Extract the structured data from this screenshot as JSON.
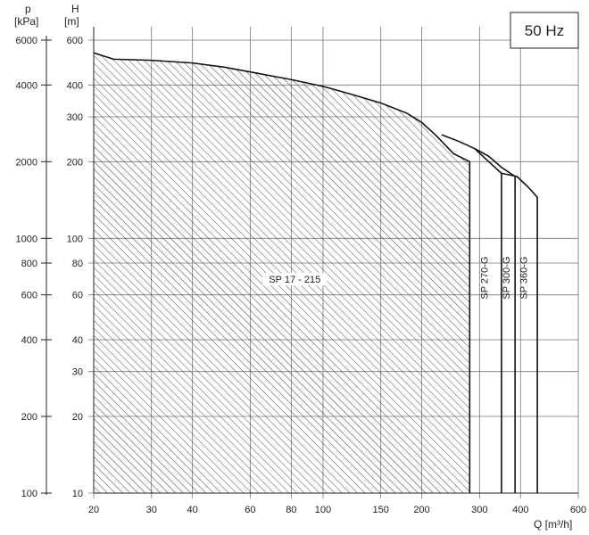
{
  "chart_data": {
    "type": "area",
    "frequency_badge": "50 Hz",
    "x_axis": {
      "label": "Q [m³/h]",
      "scale": "log",
      "range": [
        20,
        600
      ],
      "ticks": [
        20,
        30,
        40,
        60,
        80,
        100,
        150,
        200,
        300,
        400,
        600
      ],
      "tick_labels": [
        "20",
        "30",
        "40",
        "60",
        "80",
        "100",
        "150",
        "200",
        "300",
        "400",
        "600"
      ]
    },
    "y_axis_head": {
      "label_top": "H",
      "label_unit": "[m]",
      "scale": "log",
      "range": [
        10,
        600
      ],
      "ticks": [
        10,
        20,
        30,
        40,
        60,
        80,
        100,
        200,
        300,
        400,
        600
      ],
      "tick_labels": [
        "10",
        "20",
        "30",
        "40",
        "60",
        "80",
        "100",
        "200",
        "300",
        "400",
        "600"
      ]
    },
    "y_axis_pressure": {
      "label_top": "p",
      "label_unit": "[kPa]",
      "scale": "log",
      "ticks": [
        100,
        200,
        400,
        600,
        800,
        1000,
        2000,
        4000,
        6000
      ],
      "tick_labels": [
        "100",
        "200",
        "400",
        "600",
        "800",
        "1000",
        "2000",
        "4000",
        "6000"
      ]
    },
    "grid": true,
    "series": [
      {
        "name": "SP 17 - 215",
        "fill": "hatched",
        "envelope": [
          [
            20,
            535
          ],
          [
            23,
            505
          ],
          [
            30,
            500
          ],
          [
            40,
            488
          ],
          [
            50,
            470
          ],
          [
            60,
            450
          ],
          [
            80,
            420
          ],
          [
            100,
            395
          ],
          [
            120,
            370
          ],
          [
            150,
            340
          ],
          [
            180,
            310
          ],
          [
            200,
            285
          ],
          [
            220,
            255
          ],
          [
            250,
            215
          ],
          [
            280,
            200
          ]
        ],
        "q_max": 280
      },
      {
        "name": "SP 270-G",
        "envelope": [
          [
            230,
            255
          ],
          [
            260,
            240
          ],
          [
            290,
            225
          ],
          [
            320,
            200
          ],
          [
            350,
            180
          ]
        ],
        "q_max": 350
      },
      {
        "name": "SP 300-G",
        "envelope": [
          [
            290,
            225
          ],
          [
            320,
            210
          ],
          [
            350,
            190
          ],
          [
            385,
            175
          ]
        ],
        "q_max": 385
      },
      {
        "name": "SP 360-G",
        "envelope": [
          [
            350,
            180
          ],
          [
            390,
            175
          ],
          [
            420,
            160
          ],
          [
            450,
            145
          ]
        ],
        "q_max": 450
      }
    ]
  }
}
